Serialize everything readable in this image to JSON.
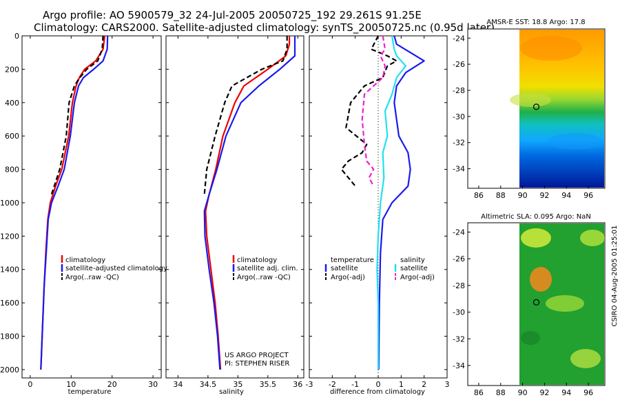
{
  "header": {
    "title_line1": "Argo profile: AO 5900579_32 24-Jul-2005 20050725_192 29.261S 91.25E",
    "title_line2": "Climatology: CARS2000. Satellite-adjusted climatology: synTS_20050725.nc (0.95d later)"
  },
  "colors": {
    "climatology": "#ee0000",
    "satellite": "#1a1aee",
    "argo": "#000000",
    "salinity_satellite": "#22e0ee",
    "salinity_argo": "#ee22cc"
  },
  "chart_data": [
    {
      "type": "line",
      "panel": "temperature",
      "xlabel": "temperature",
      "ylabel": "",
      "xlim": [
        -2,
        32
      ],
      "ylim": [
        2050,
        0
      ],
      "xticks": [
        0,
        10,
        20,
        30
      ],
      "yticks": [
        0,
        200,
        400,
        600,
        800,
        1000,
        1200,
        1400,
        1600,
        1800,
        2000
      ],
      "legend": [
        "climatology",
        "satellite-adjusted climatology",
        "Argo(..raw -QC)"
      ],
      "series": [
        {
          "name": "climatology",
          "style": "solid",
          "color": "#ee0000",
          "x": [
            18.2,
            17.8,
            16.0,
            13.3,
            12.0,
            11.2,
            10.3,
            9.4,
            7.7,
            6.2,
            4.9,
            4.3,
            3.8,
            3.4,
            3.0,
            2.6
          ],
          "y": [
            0,
            80,
            150,
            200,
            250,
            300,
            400,
            600,
            800,
            900,
            1000,
            1100,
            1300,
            1500,
            1750,
            2000
          ]
        },
        {
          "name": "satellite-adjusted climatology",
          "style": "solid",
          "color": "#1a1aee",
          "x": [
            18.9,
            18.8,
            17.8,
            15.5,
            13.0,
            11.8,
            10.8,
            9.8,
            8.3,
            6.8,
            5.2,
            4.4,
            3.9,
            3.4,
            3.0,
            2.6
          ],
          "y": [
            0,
            80,
            150,
            200,
            250,
            300,
            400,
            600,
            800,
            900,
            1000,
            1100,
            1300,
            1500,
            1750,
            2000
          ]
        },
        {
          "name": "Argo(..raw -QC)",
          "style": "dash",
          "color": "#000000",
          "x": [
            17.8,
            17.6,
            16.5,
            13.8,
            11.8,
            10.8,
            9.5,
            8.8,
            7.2,
            5.2
          ],
          "y": [
            0,
            80,
            150,
            200,
            260,
            300,
            400,
            600,
            800,
            950
          ]
        }
      ]
    },
    {
      "type": "line",
      "panel": "salinity",
      "xlabel": "salinity",
      "ylabel": "",
      "xlim": [
        33.8,
        36.1
      ],
      "ylim": [
        2050,
        0
      ],
      "xticks": [
        34,
        34.5,
        35,
        35.5,
        36
      ],
      "legend": [
        "climatology",
        "satellite adj. clim.",
        "Argo(..raw -QC)"
      ],
      "annotations": [
        "US ARGO PROJECT",
        "PI: STEPHEN RISER"
      ],
      "series": [
        {
          "name": "climatology",
          "style": "solid",
          "color": "#ee0000",
          "x": [
            35.86,
            35.86,
            35.8,
            35.5,
            35.1,
            34.95,
            34.75,
            34.63,
            34.52,
            34.46,
            34.48,
            34.55,
            34.62,
            34.67,
            34.71
          ],
          "y": [
            0,
            50,
            120,
            200,
            300,
            400,
            600,
            800,
            950,
            1050,
            1200,
            1400,
            1600,
            1800,
            2000
          ]
        },
        {
          "name": "satellite adj. clim.",
          "style": "solid",
          "color": "#1a1aee",
          "x": [
            35.95,
            35.95,
            35.95,
            35.7,
            35.35,
            35.05,
            34.8,
            34.65,
            34.52,
            34.44,
            34.45,
            34.52,
            34.6,
            34.66,
            34.7
          ],
          "y": [
            0,
            50,
            120,
            200,
            300,
            400,
            600,
            800,
            950,
            1050,
            1200,
            1400,
            1600,
            1800,
            2000
          ]
        },
        {
          "name": "Argo(..raw -QC)",
          "style": "dash",
          "color": "#000000",
          "x": [
            35.82,
            35.82,
            35.75,
            35.4,
            34.9,
            34.78,
            34.62,
            34.48,
            34.44
          ],
          "y": [
            0,
            80,
            150,
            200,
            300,
            400,
            600,
            800,
            950
          ]
        }
      ]
    },
    {
      "type": "line",
      "panel": "difference",
      "xlabel": "difference from climatology",
      "ylabel": "",
      "xlim": [
        -3,
        3
      ],
      "ylim": [
        2050,
        0
      ],
      "xticks": [
        -3,
        -2,
        -1,
        0,
        1,
        2,
        3
      ],
      "legend_left": [
        "temperature",
        "satellite",
        "Argo(-adj)"
      ],
      "legend_right": [
        "salinity",
        "satellite",
        "Argo(-adj)"
      ],
      "series": [
        {
          "name": "temperature satellite",
          "style": "solid",
          "color": "#1a1aee",
          "x": [
            0.7,
            0.8,
            1.4,
            2.0,
            1.2,
            0.8,
            0.7,
            0.9,
            1.3,
            1.4,
            1.3,
            0.6,
            0.2,
            0.1,
            0.05,
            0.02
          ],
          "y": [
            0,
            50,
            100,
            150,
            220,
            300,
            400,
            600,
            700,
            800,
            900,
            1000,
            1100,
            1300,
            1600,
            2000
          ]
        },
        {
          "name": "temperature Argo(-adj)",
          "style": "dash",
          "color": "#000000",
          "x": [
            0.0,
            -0.3,
            0.4,
            0.8,
            0.4,
            0.2,
            -0.6,
            -1.2,
            -1.4,
            -0.5,
            -0.7,
            -1.3,
            -1.6,
            -1.3,
            -1.0
          ],
          "y": [
            0,
            80,
            120,
            150,
            180,
            250,
            300,
            400,
            550,
            650,
            700,
            750,
            800,
            850,
            900
          ]
        },
        {
          "name": "salinity satellite",
          "style": "solid",
          "color": "#22e0ee",
          "x": [
            0.6,
            0.7,
            0.8,
            1.2,
            0.8,
            0.6,
            0.3,
            0.4,
            0.2,
            0.25,
            0.1,
            0.0,
            -0.05,
            0.0,
            0.0,
            0.0
          ],
          "y": [
            0,
            80,
            120,
            180,
            250,
            350,
            450,
            600,
            700,
            850,
            1000,
            1200,
            1400,
            1600,
            1800,
            2000
          ]
        },
        {
          "name": "salinity Argo(-adj)",
          "style": "dash",
          "color": "#ee22cc",
          "x": [
            0.2,
            0.3,
            0.1,
            0.3,
            0.2,
            -0.2,
            -0.6,
            -0.7,
            -0.6,
            -0.5,
            -0.2,
            -0.4,
            -0.2
          ],
          "y": [
            0,
            80,
            120,
            180,
            250,
            300,
            350,
            500,
            650,
            750,
            800,
            850,
            900
          ]
        }
      ]
    },
    {
      "type": "heatmap",
      "panel": "sst-map",
      "title": "AMSR-E SST: 18.8 Argo: 17.8",
      "xlim": [
        85,
        97.5
      ],
      "ylim": [
        -35.5,
        -23.3
      ],
      "xticks": [
        86,
        88,
        90,
        92,
        94,
        96
      ],
      "yticks": [
        -24,
        -26,
        -28,
        -30,
        -32,
        -34
      ],
      "data_start_lon": 90,
      "argo_position": [
        91.25,
        -29.261
      ]
    },
    {
      "type": "heatmap",
      "panel": "sla-map",
      "title": "Altimetric SLA: 0.095 Argo: NaN",
      "xlim": [
        85,
        97.5
      ],
      "ylim": [
        -35.5,
        -23.3
      ],
      "xticks": [
        86,
        88,
        90,
        92,
        94,
        96
      ],
      "yticks": [
        -24,
        -26,
        -28,
        -30,
        -32,
        -34
      ],
      "data_start_lon": 90,
      "argo_position": [
        91.25,
        -29.261
      ]
    }
  ],
  "side_label": "CSIRO 04-Aug-2005 01:25:01"
}
